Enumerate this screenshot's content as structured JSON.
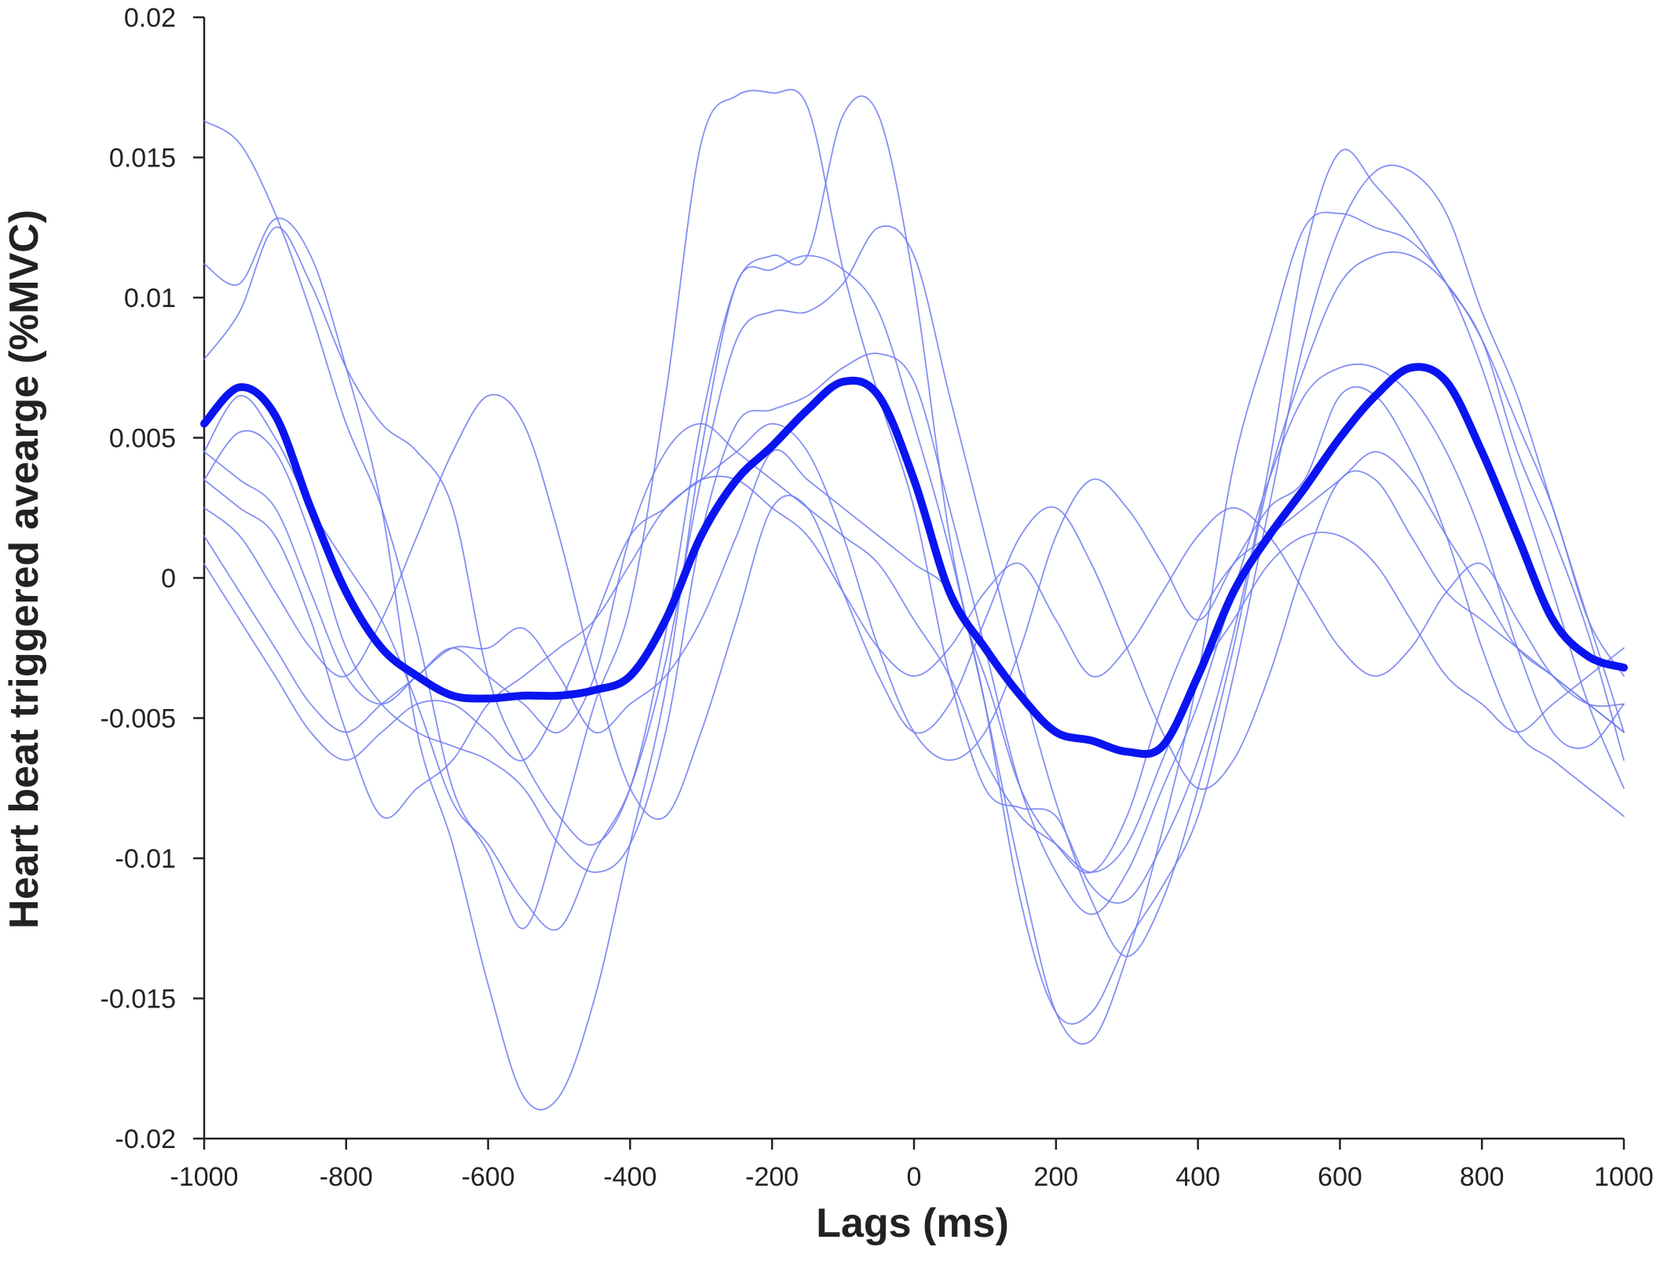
{
  "chart_data": {
    "type": "line",
    "xlabel": "Lags (ms)",
    "ylabel": "Heart beat triggered avearge (%MVC)",
    "xlim": [
      -1000,
      1000
    ],
    "ylim": [
      -0.02,
      0.02
    ],
    "xticks": [
      -1000,
      -800,
      -600,
      -400,
      -200,
      0,
      200,
      400,
      600,
      800,
      1000
    ],
    "xtick_labels": [
      "-1000",
      "-800",
      "-600",
      "-400",
      "-200",
      "0",
      "200",
      "400",
      "600",
      "800",
      "1000"
    ],
    "yticks": [
      0.02,
      0.015,
      0.01,
      0.005,
      0,
      -0.005,
      -0.01,
      -0.015,
      -0.02
    ],
    "ytick_labels": [
      "0.02",
      "0.015",
      "0.01",
      "0.005",
      "0",
      "-0.005",
      "-0.01",
      "-0.015",
      "-0.02"
    ],
    "grid": false,
    "colors": {
      "individual": "#6f7df0",
      "average": "#0a14f0",
      "axis": "#222222"
    },
    "series": [
      {
        "role": "individual",
        "x": [
          -1000,
          -950,
          -900,
          -850,
          -800,
          -750,
          -700,
          -650,
          -600,
          -550,
          -500,
          -450,
          -400,
          -350,
          -300,
          -250,
          -200,
          -150,
          -100,
          -50,
          0,
          50,
          100,
          150,
          200,
          250,
          300,
          350,
          400,
          450,
          500,
          550,
          600,
          650,
          700,
          750,
          800,
          850,
          900,
          950,
          1000
        ],
        "y": [
          0.0163,
          0.0155,
          0.013,
          0.0095,
          0.0055,
          0.0025,
          -0.002,
          -0.0075,
          -0.0098,
          -0.0125,
          -0.009,
          -0.0045,
          -0.001,
          0.0065,
          0.0155,
          0.0172,
          0.0173,
          0.0168,
          0.011,
          0.0065,
          0.0025,
          -0.0035,
          -0.0075,
          -0.0082,
          -0.0085,
          -0.011,
          -0.0115,
          -0.0095,
          -0.0065,
          -0.002,
          0.004,
          0.0115,
          0.0152,
          0.014,
          0.0125,
          0.0105,
          0.0085,
          0.0045,
          0.0015,
          -0.002,
          -0.0065
        ]
      },
      {
        "role": "individual",
        "x": [
          -1000,
          -950,
          -900,
          -850,
          -800,
          -750,
          -700,
          -650,
          -600,
          -550,
          -500,
          -450,
          -400,
          -350,
          -300,
          -250,
          -200,
          -150,
          -100,
          -50,
          0,
          50,
          100,
          150,
          200,
          250,
          300,
          350,
          400,
          450,
          500,
          550,
          600,
          650,
          700,
          750,
          800,
          850,
          900,
          950,
          1000
        ],
        "y": [
          0.0112,
          0.0105,
          0.0128,
          0.0115,
          0.0075,
          0.0025,
          -0.0055,
          -0.0095,
          -0.0145,
          -0.0185,
          -0.0185,
          -0.015,
          -0.0095,
          -0.004,
          0.0045,
          0.0105,
          0.011,
          0.0115,
          0.011,
          0.0095,
          0.0055,
          0.001,
          -0.0045,
          -0.0105,
          -0.0155,
          -0.0165,
          -0.0135,
          -0.009,
          -0.0035,
          0.004,
          0.0085,
          0.0125,
          0.013,
          0.0125,
          0.012,
          0.0105,
          0.0075,
          0.0035,
          -0.0005,
          -0.0045,
          -0.0075
        ]
      },
      {
        "role": "individual",
        "x": [
          -1000,
          -950,
          -900,
          -850,
          -800,
          -750,
          -700,
          -650,
          -600,
          -550,
          -500,
          -450,
          -400,
          -350,
          -300,
          -250,
          -200,
          -150,
          -100,
          -50,
          0,
          50,
          100,
          150,
          200,
          250,
          300,
          350,
          400,
          450,
          500,
          550,
          600,
          650,
          700,
          750,
          800,
          850,
          900,
          950,
          1000
        ],
        "y": [
          0.0078,
          0.0095,
          0.0125,
          0.0105,
          0.0075,
          0.0055,
          0.0045,
          0.0025,
          -0.0035,
          -0.0065,
          -0.0085,
          -0.0095,
          -0.0075,
          -0.002,
          0.0055,
          0.0105,
          0.0115,
          0.0115,
          0.0165,
          0.0165,
          0.0105,
          0.0015,
          -0.0045,
          -0.0115,
          -0.0155,
          -0.0155,
          -0.013,
          -0.011,
          -0.0085,
          -0.0035,
          0.0025,
          0.0085,
          0.0125,
          0.0145,
          0.0145,
          0.013,
          0.0095,
          0.0065,
          0.0025,
          -0.0015,
          -0.0055
        ]
      },
      {
        "role": "individual",
        "x": [
          -1000,
          -950,
          -900,
          -850,
          -800,
          -750,
          -700,
          -650,
          -600,
          -550,
          -500,
          -450,
          -400,
          -350,
          -300,
          -250,
          -200,
          -150,
          -100,
          -50,
          0,
          50,
          100,
          150,
          200,
          250,
          300,
          350,
          400,
          450,
          500,
          550,
          600,
          650,
          700,
          750,
          800,
          850,
          900,
          950,
          1000
        ],
        "y": [
          0.0045,
          0.0065,
          0.005,
          0.0025,
          0.0005,
          -0.0015,
          -0.0045,
          -0.008,
          -0.0095,
          -0.0115,
          -0.0125,
          -0.0098,
          -0.0075,
          -0.003,
          0.0035,
          0.0085,
          0.0095,
          0.0095,
          0.0105,
          0.0125,
          0.0115,
          0.0065,
          0.0015,
          -0.0035,
          -0.008,
          -0.0115,
          -0.0135,
          -0.0115,
          -0.0075,
          -0.0025,
          0.0035,
          0.0075,
          0.0105,
          0.0115,
          0.0115,
          0.0105,
          0.0085,
          0.0055,
          0.0025,
          -0.0015,
          -0.0035
        ]
      },
      {
        "role": "individual",
        "x": [
          -1000,
          -950,
          -900,
          -850,
          -800,
          -750,
          -700,
          -650,
          -600,
          -550,
          -500,
          -450,
          -400,
          -350,
          -300,
          -250,
          -200,
          -150,
          -100,
          -50,
          0,
          50,
          100,
          150,
          200,
          250,
          300,
          350,
          400,
          450,
          500,
          550,
          600,
          650,
          700,
          750,
          800,
          850,
          900,
          950,
          1000
        ],
        "y": [
          0.0035,
          0.0052,
          0.0045,
          0.0015,
          -0.0025,
          -0.0045,
          -0.0055,
          -0.006,
          -0.0065,
          -0.0075,
          -0.0095,
          -0.0105,
          -0.0095,
          -0.0055,
          0.0015,
          0.0055,
          0.006,
          0.0065,
          0.0075,
          0.008,
          0.007,
          0.0025,
          -0.0025,
          -0.0075,
          -0.0105,
          -0.012,
          -0.0105,
          -0.0075,
          -0.0045,
          -0.0005,
          0.0035,
          0.0065,
          0.0075,
          0.0075,
          0.0065,
          0.0045,
          0.0015,
          -0.0025,
          -0.0055,
          -0.006,
          -0.0045
        ]
      },
      {
        "role": "individual",
        "x": [
          -1000,
          -950,
          -900,
          -850,
          -800,
          -750,
          -700,
          -650,
          -600,
          -550,
          -500,
          -450,
          -400,
          -350,
          -300,
          -250,
          -200,
          -150,
          -100,
          -50,
          0,
          50,
          100,
          150,
          200,
          250,
          300,
          350,
          400,
          450,
          500,
          550,
          600,
          650,
          700,
          750,
          800,
          850,
          900,
          950,
          1000
        ],
        "y": [
          0.0035,
          0.0025,
          0.0015,
          -0.0015,
          -0.0055,
          -0.0085,
          -0.0075,
          -0.0065,
          -0.0045,
          -0.0035,
          -0.0025,
          -0.0015,
          0.0005,
          0.0025,
          0.0035,
          0.0045,
          0.0055,
          0.0045,
          0.0015,
          -0.0025,
          -0.0055,
          -0.0065,
          -0.0055,
          -0.0025,
          0.0015,
          0.0035,
          0.0025,
          0.0005,
          -0.0015,
          0.0005,
          0.0025,
          0.0035,
          0.0065,
          0.0065,
          0.0045,
          0.0015,
          -0.0025,
          -0.0055,
          -0.0065,
          -0.0075,
          -0.0085
        ]
      },
      {
        "role": "individual",
        "x": [
          -1000,
          -950,
          -900,
          -850,
          -800,
          -750,
          -700,
          -650,
          -600,
          -550,
          -500,
          -450,
          -400,
          -350,
          -300,
          -250,
          -200,
          -150,
          -100,
          -50,
          0,
          50,
          100,
          150,
          200,
          250,
          300,
          350,
          400,
          450,
          500,
          550,
          600,
          650,
          700,
          750,
          800,
          850,
          900,
          950,
          1000
        ],
        "y": [
          0.0045,
          0.0035,
          0.0025,
          -0.0005,
          -0.0035,
          -0.0045,
          -0.0035,
          -0.0025,
          -0.0025,
          -0.0018,
          -0.0035,
          -0.0055,
          -0.0045,
          -0.0035,
          -0.0015,
          0.0015,
          0.0045,
          0.0035,
          0.0025,
          0.0015,
          0.0005,
          -0.0005,
          -0.0035,
          -0.0075,
          -0.0095,
          -0.0105,
          -0.0085,
          -0.0045,
          -0.0015,
          0.0005,
          0.0015,
          0.0025,
          0.0035,
          0.0045,
          0.0035,
          0.0015,
          -0.0005,
          -0.0025,
          -0.0035,
          -0.0045,
          -0.0055
        ]
      },
      {
        "role": "individual",
        "x": [
          -1000,
          -950,
          -900,
          -850,
          -800,
          -750,
          -700,
          -650,
          -600,
          -550,
          -500,
          -450,
          -400,
          -350,
          -300,
          -250,
          -200,
          -150,
          -100,
          -50,
          0,
          50,
          100,
          150,
          200,
          250,
          300,
          350,
          400,
          450,
          500,
          550,
          600,
          650,
          700,
          750,
          800,
          850,
          900,
          950,
          1000
        ],
        "y": [
          0.0025,
          0.0015,
          -0.0005,
          -0.0025,
          -0.0035,
          -0.0015,
          0.0015,
          0.0045,
          0.0065,
          0.0055,
          0.0015,
          -0.0035,
          -0.0075,
          -0.0085,
          -0.0055,
          -0.0015,
          0.0025,
          0.0025,
          -0.0005,
          -0.0035,
          -0.0055,
          -0.0045,
          -0.0015,
          0.0015,
          0.0025,
          0.0005,
          -0.0025,
          -0.0055,
          -0.0075,
          -0.0065,
          -0.0035,
          0.0005,
          0.0035,
          0.0035,
          0.0015,
          -0.0005,
          -0.0015,
          -0.0025,
          -0.0035,
          -0.0045,
          -0.0055
        ]
      },
      {
        "role": "individual",
        "x": [
          -1000,
          -950,
          -900,
          -850,
          -800,
          -750,
          -700,
          -650,
          -600,
          -550,
          -500,
          -450,
          -400,
          -350,
          -300,
          -250,
          -200,
          -150,
          -100,
          -50,
          0,
          50,
          100,
          150,
          200,
          250,
          300,
          350,
          400,
          450,
          500,
          550,
          600,
          650,
          700,
          750,
          800,
          850,
          900,
          950,
          1000
        ],
        "y": [
          0.0015,
          -0.0005,
          -0.0025,
          -0.0045,
          -0.0055,
          -0.0045,
          -0.0035,
          -0.0025,
          -0.0035,
          -0.0045,
          -0.0055,
          -0.0035,
          0.0015,
          0.0045,
          0.0055,
          0.0045,
          0.0035,
          0.0025,
          0.0015,
          0.0005,
          -0.0015,
          -0.0035,
          -0.0065,
          -0.0085,
          -0.0095,
          -0.0105,
          -0.0095,
          -0.0065,
          -0.0035,
          -0.0015,
          0.0005,
          0.0015,
          0.0015,
          0.0005,
          -0.0015,
          -0.0035,
          -0.0045,
          -0.0055,
          -0.0045,
          -0.0035,
          -0.0025
        ]
      },
      {
        "role": "individual",
        "x": [
          -1000,
          -950,
          -900,
          -850,
          -800,
          -750,
          -700,
          -650,
          -600,
          -550,
          -500,
          -450,
          -400,
          -350,
          -300,
          -250,
          -200,
          -150,
          -100,
          -50,
          0,
          50,
          100,
          150,
          200,
          250,
          300,
          350,
          400,
          450,
          500,
          550,
          600,
          650,
          700,
          750,
          800,
          850,
          900,
          950,
          1000
        ],
        "y": [
          0.0005,
          -0.0015,
          -0.0035,
          -0.0055,
          -0.0065,
          -0.0055,
          -0.0045,
          -0.0045,
          -0.0055,
          -0.0065,
          -0.0045,
          -0.0015,
          0.0015,
          0.0025,
          0.0035,
          0.0035,
          0.0025,
          0.0015,
          -0.0005,
          -0.0025,
          -0.0035,
          -0.0025,
          -0.0005,
          0.0005,
          -0.0015,
          -0.0035,
          -0.0025,
          -0.0005,
          0.0015,
          0.0025,
          0.0015,
          -0.0005,
          -0.0025,
          -0.0035,
          -0.0025,
          -0.0005,
          0.0005,
          -0.0015,
          -0.0035,
          -0.0045,
          -0.0045
        ]
      },
      {
        "role": "average",
        "x": [
          -1000,
          -950,
          -900,
          -850,
          -800,
          -750,
          -700,
          -650,
          -600,
          -550,
          -500,
          -450,
          -400,
          -350,
          -300,
          -250,
          -200,
          -150,
          -100,
          -50,
          0,
          50,
          100,
          150,
          200,
          250,
          300,
          350,
          400,
          450,
          500,
          550,
          600,
          650,
          700,
          750,
          800,
          850,
          900,
          950,
          1000
        ],
        "y": [
          0.0055,
          0.0068,
          0.0058,
          0.0025,
          -0.0005,
          -0.0025,
          -0.0035,
          -0.0042,
          -0.0043,
          -0.0042,
          -0.0042,
          -0.004,
          -0.0035,
          -0.0015,
          0.0015,
          0.0035,
          0.0047,
          0.006,
          0.007,
          0.0065,
          0.0035,
          -0.0005,
          -0.0025,
          -0.0042,
          -0.0055,
          -0.0058,
          -0.0062,
          -0.006,
          -0.0035,
          -0.0005,
          0.0015,
          0.0032,
          0.005,
          0.0065,
          0.0075,
          0.007,
          0.0045,
          0.0015,
          -0.0015,
          -0.0028,
          -0.0032
        ]
      }
    ]
  }
}
